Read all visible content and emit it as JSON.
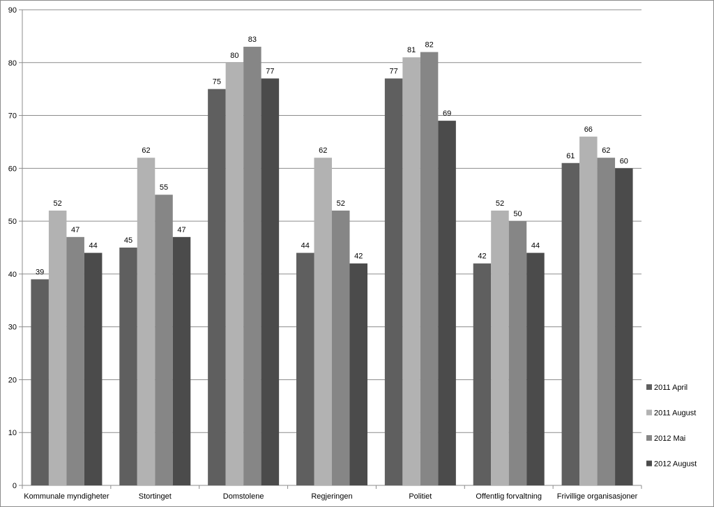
{
  "chart_data": {
    "type": "bar",
    "title": "",
    "xlabel": "",
    "ylabel": "",
    "ylim": [
      0,
      90
    ],
    "yticks": [
      0,
      10,
      20,
      30,
      40,
      50,
      60,
      70,
      80,
      90
    ],
    "grid": true,
    "legend_position": "right",
    "categories": [
      "Kommunale myndigheter",
      "Stortinget",
      "Domstolene",
      "Regjeringen",
      "Politiet",
      "Offentlig forvaltning",
      "Frivillige organisasjoner"
    ],
    "series": [
      {
        "name": "2011 April",
        "color": "#5f5f5f",
        "values": [
          39,
          45,
          75,
          44,
          77,
          42,
          61
        ]
      },
      {
        "name": "2011 August",
        "color": "#b2b2b2",
        "values": [
          52,
          62,
          80,
          62,
          81,
          52,
          66
        ]
      },
      {
        "name": "2012 Mai",
        "color": "#868686",
        "values": [
          47,
          55,
          83,
          52,
          82,
          50,
          62
        ]
      },
      {
        "name": "2012 August",
        "color": "#4b4b4b",
        "values": [
          44,
          47,
          77,
          42,
          69,
          44,
          60
        ]
      }
    ]
  }
}
